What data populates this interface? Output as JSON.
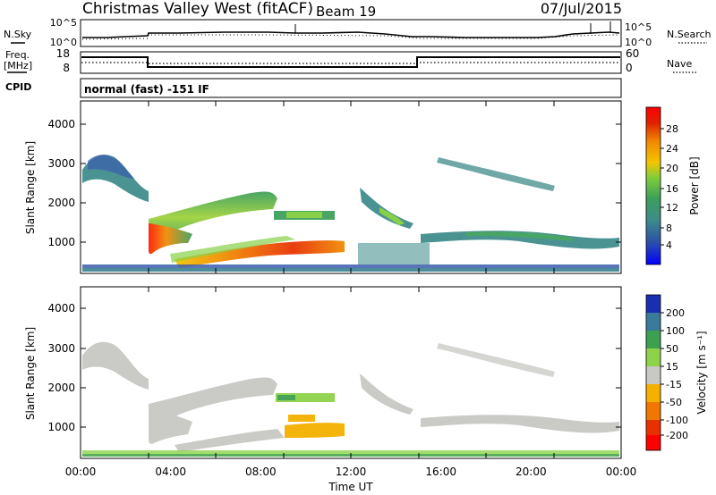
{
  "header": {
    "title": "Christmas Valley West (fitACF)",
    "beam": "Beam 19",
    "date": "07/Jul/2015"
  },
  "status_panels": {
    "nsky_label": "N.Sky",
    "nsky_ticks": [
      "10^5",
      "10^0"
    ],
    "nsearch_label": "N.Search",
    "nsearch_ticks": [
      "10^5",
      "10^0"
    ],
    "freq_label_1": "Freq.",
    "freq_label_2": "[MHz]",
    "freq_ticks": [
      "18",
      "8"
    ],
    "nave_label": "Nave",
    "nave_ticks": [
      "60",
      "0"
    ],
    "cpid_label": "CPID",
    "cpid_text": "normal (fast) -151 IF"
  },
  "chart_data": [
    {
      "type": "heatmap",
      "panel": "power",
      "ylabel": "Slant Range [km]",
      "yticks": [
        1000,
        2000,
        3000,
        4000
      ],
      "ylim": [
        180,
        4500
      ],
      "xlabel": "Time UT",
      "xticks": [
        "00:00",
        "04:00",
        "08:00",
        "12:00",
        "16:00",
        "20:00",
        "00:00"
      ],
      "xlim_hours": [
        0,
        24
      ],
      "colorbar": {
        "label": "Power [dB]",
        "ticks": [
          "4",
          "8",
          "12",
          "16",
          "20",
          "24",
          "28"
        ],
        "colors": [
          "#0000ff",
          "#2b50a8",
          "#3e8b8b",
          "#3c9f5a",
          "#7fcd3a",
          "#f5c400",
          "#f08a00",
          "#e02000",
          "#ff0000"
        ]
      },
      "features": [
        {
          "time": [
            0.3,
            2.7
          ],
          "range_km": [
            2200,
            3300
          ],
          "level_db": "8-14"
        },
        {
          "time": [
            2.9,
            8.9
          ],
          "range_km": [
            1000,
            2300
          ],
          "level_db": "12-30"
        },
        {
          "time": [
            4.0,
            11.6
          ],
          "range_km": [
            500,
            1000
          ],
          "level_db": "16-30"
        },
        {
          "time": [
            8.8,
            10.6
          ],
          "range_km": [
            1550,
            1750
          ],
          "level_db": "12-20"
        },
        {
          "time": [
            13.4,
            14.9
          ],
          "range_km": [
            1200,
            1900
          ],
          "level_db": "12-18"
        },
        {
          "time": [
            15.1,
            23.6
          ],
          "range_km": [
            800,
            1200
          ],
          "level_db": "8-16"
        },
        {
          "time": [
            16.0,
            21.0
          ],
          "range_km": [
            2500,
            3100
          ],
          "level_db": "8-12"
        },
        {
          "time": [
            0.0,
            24.0
          ],
          "range_km": [
            180,
            500
          ],
          "level_db": "4-16"
        }
      ]
    },
    {
      "type": "heatmap",
      "panel": "velocity",
      "ylabel": "Slant Range [km]",
      "yticks": [
        1000,
        2000,
        3000,
        4000
      ],
      "ylim": [
        180,
        4500
      ],
      "xlabel": "Time UT",
      "xticks": [
        "00:00",
        "04:00",
        "08:00",
        "12:00",
        "16:00",
        "20:00",
        "00:00"
      ],
      "xlim_hours": [
        0,
        24
      ],
      "colorbar": {
        "label": "Velocity [m s⁻¹]",
        "ticks": [
          "200",
          "100",
          "50",
          "15",
          "-15",
          "-50",
          "-100",
          "-200"
        ],
        "colors": [
          "#1a2fb0",
          "#3a7a9a",
          "#3ca050",
          "#8ed24a",
          "#c8c8c4",
          "#f5b000",
          "#f07800",
          "#e83000",
          "#ff0000"
        ]
      },
      "features": [
        {
          "time": [
            0.3,
            2.7
          ],
          "range_km": [
            2200,
            3300
          ],
          "velocity": "ground scatter (~0)"
        },
        {
          "time": [
            2.9,
            8.9
          ],
          "range_km": [
            1000,
            2300
          ],
          "velocity": "ground scatter (~0)"
        },
        {
          "time": [
            4.0,
            9.0
          ],
          "range_km": [
            700,
            950
          ],
          "velocity": "ground scatter (~0)"
        },
        {
          "time": [
            9.0,
            11.6
          ],
          "range_km": [
            700,
            1100
          ],
          "velocity": "-15 to -50"
        },
        {
          "time": [
            8.8,
            10.6
          ],
          "range_km": [
            1550,
            1750
          ],
          "velocity": "15 to 50"
        },
        {
          "time": [
            15.1,
            23.6
          ],
          "range_km": [
            800,
            1200
          ],
          "velocity": "ground scatter (~0)"
        },
        {
          "time": [
            0.0,
            24.0
          ],
          "range_km": [
            180,
            400
          ],
          "velocity": "15 to 50"
        }
      ]
    }
  ]
}
